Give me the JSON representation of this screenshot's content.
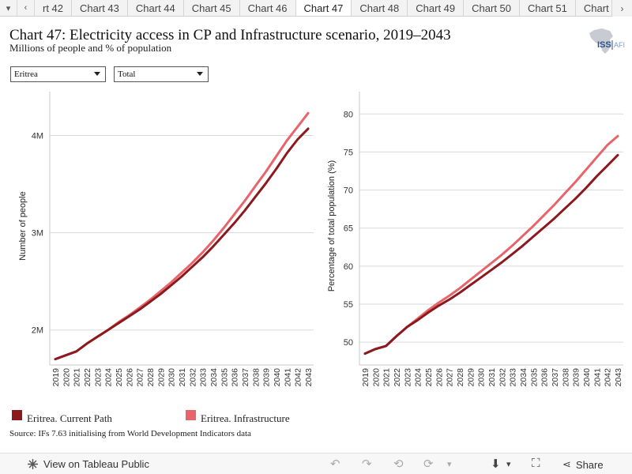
{
  "tabs": {
    "prev_icon": "chevron-left-icon",
    "items": [
      "rt 42",
      "Chart 43",
      "Chart 44",
      "Chart 45",
      "Chart 46",
      "Chart 47",
      "Chart 48",
      "Chart 49",
      "Chart 50",
      "Chart 51",
      "Chart"
    ],
    "active_index": 5
  },
  "header": {
    "title": "Chart 47: Electricity access in CP and Infrastructure scenario, 2019–2043",
    "subtitle": "Millions of people and % of population",
    "logo_text": "ISS",
    "logo_suffix": "AFI"
  },
  "filters": {
    "country": "Eritrea",
    "group": "Total"
  },
  "colors": {
    "current_path": "#8b1a1f",
    "infrastructure": "#e8646b",
    "grid": "#d9d9d9"
  },
  "chart_data": [
    {
      "type": "line",
      "ylabel": "Number of people",
      "yticks": [
        {
          "value": 2000000,
          "label": "2M"
        },
        {
          "value": 3000000,
          "label": "3M"
        },
        {
          "value": 4000000,
          "label": "4M"
        }
      ],
      "ylim": [
        1640000,
        4370000
      ],
      "x": [
        2019,
        2020,
        2021,
        2022,
        2023,
        2024,
        2025,
        2026,
        2027,
        2028,
        2029,
        2030,
        2031,
        2032,
        2033,
        2034,
        2035,
        2036,
        2037,
        2038,
        2039,
        2040,
        2041,
        2042,
        2043
      ],
      "series": [
        {
          "name": "Eritrea. Current Path",
          "values": [
            1700000,
            1740000,
            1780000,
            1860000,
            1930000,
            2000000,
            2070000,
            2140000,
            2210000,
            2290000,
            2370000,
            2460000,
            2550000,
            2650000,
            2750000,
            2860000,
            2980000,
            3100000,
            3230000,
            3370000,
            3510000,
            3660000,
            3820000,
            3960000,
            4070000
          ]
        },
        {
          "name": "Eritrea. Infrastructure",
          "values": [
            1700000,
            1740000,
            1780000,
            1860000,
            1930000,
            2000000,
            2080000,
            2150000,
            2230000,
            2310000,
            2400000,
            2490000,
            2590000,
            2690000,
            2800000,
            2920000,
            3050000,
            3190000,
            3330000,
            3480000,
            3630000,
            3790000,
            3950000,
            4090000,
            4230000
          ]
        }
      ]
    },
    {
      "type": "line",
      "ylabel": "Percentage of total population (%)",
      "yticks": [
        {
          "value": 50,
          "label": "50"
        },
        {
          "value": 55,
          "label": "55"
        },
        {
          "value": 60,
          "label": "60"
        },
        {
          "value": 65,
          "label": "65"
        },
        {
          "value": 70,
          "label": "70"
        },
        {
          "value": 75,
          "label": "75"
        },
        {
          "value": 80,
          "label": "80"
        }
      ],
      "ylim": [
        47.0,
        81.9
      ],
      "x": [
        2019,
        2020,
        2021,
        2022,
        2023,
        2024,
        2025,
        2026,
        2027,
        2028,
        2029,
        2030,
        2031,
        2032,
        2033,
        2034,
        2035,
        2036,
        2037,
        2038,
        2039,
        2040,
        2041,
        2042,
        2043
      ],
      "series": [
        {
          "name": "Eritrea. Current Path",
          "values": [
            48.5,
            49.1,
            49.5,
            50.8,
            52.0,
            52.9,
            53.9,
            54.8,
            55.6,
            56.5,
            57.5,
            58.5,
            59.5,
            60.5,
            61.6,
            62.7,
            63.9,
            65.1,
            66.3,
            67.6,
            68.9,
            70.3,
            71.8,
            73.2,
            74.6
          ]
        },
        {
          "name": "Eritrea. Infrastructure",
          "values": [
            48.5,
            49.1,
            49.5,
            50.8,
            52.0,
            53.1,
            54.2,
            55.2,
            56.1,
            57.1,
            58.2,
            59.3,
            60.4,
            61.5,
            62.7,
            64.0,
            65.3,
            66.7,
            68.1,
            69.6,
            71.1,
            72.7,
            74.3,
            75.9,
            77.1
          ]
        }
      ]
    }
  ],
  "legend": [
    "Eritrea. Current Path",
    "Eritrea. Infrastructure"
  ],
  "source": "Source: IFs 7.63 initialising from World Development Indicators data",
  "footer": {
    "view_label": "View on Tableau Public",
    "share_label": "Share"
  }
}
